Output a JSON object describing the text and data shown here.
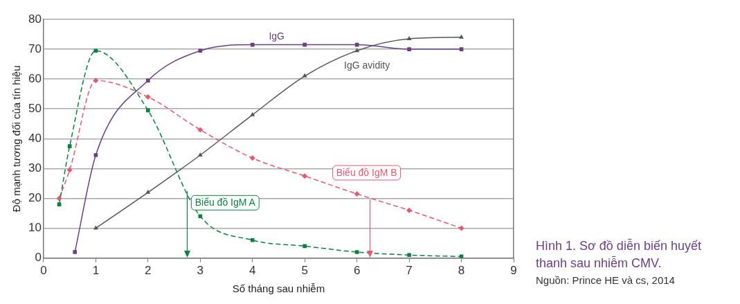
{
  "chart_data": {
    "type": "line",
    "title": "Hình 1. Sơ đồ diễn biến huyết thanh sau nhiễm CMV.",
    "xlabel": "Số tháng sau nhiễm",
    "ylabel": "Độ mạnh tương đối của tín hiệu",
    "annotations": [
      "Nguồn: Prince HE và cs, 2014"
    ],
    "series": [
      {
        "name": "Biểu đồ IgM A",
        "color": "#0a8040",
        "marker": "square",
        "line_style": "dashed",
        "x": [
          0.3,
          0.5,
          1,
          2,
          3,
          4,
          5,
          6,
          7,
          8
        ],
        "values": [
          18,
          37.5,
          69.5,
          49.5,
          14,
          6,
          4,
          2,
          1,
          0.5
        ]
      },
      {
        "name": "Biểu đồ IgM B",
        "color": "#e05a70",
        "marker": "diamond",
        "line_style": "dashed",
        "x": [
          0.3,
          0.5,
          1,
          2,
          3,
          4,
          5,
          6,
          7,
          8
        ],
        "values": [
          20,
          29.5,
          59.5,
          54,
          43,
          33.5,
          27.5,
          21.5,
          16,
          10
        ]
      },
      {
        "name": "IgG",
        "color": "#6a3f86",
        "marker": "square",
        "line_style": "solid",
        "x": [
          0.6,
          1,
          2,
          3,
          4,
          5,
          6,
          7,
          8
        ],
        "values": [
          2,
          34.5,
          59.5,
          69.5,
          71.5,
          71.5,
          71.5,
          70,
          70
        ]
      },
      {
        "name": "IgG avidity",
        "color": "#555555",
        "marker": "triangle",
        "line_style": "solid",
        "x": [
          1,
          2,
          3,
          4,
          5,
          6,
          7,
          8
        ],
        "values": [
          10,
          22,
          34.5,
          48,
          61,
          69.5,
          73.5,
          74
        ]
      }
    ],
    "ref_lines": [
      {
        "axis": "x",
        "value": 2.75,
        "color": "#0a8040"
      },
      {
        "axis": "x",
        "value": 6.25,
        "color": "#e05a70"
      }
    ],
    "xlim": [
      0,
      9
    ],
    "xticks": [
      0,
      1,
      2,
      3,
      4,
      5,
      6,
      7,
      8,
      9
    ],
    "ylim": [
      0,
      80
    ],
    "yticks": [
      0,
      10,
      20,
      30,
      40,
      50,
      60,
      70,
      80
    ],
    "grid": "y",
    "legend": false
  }
}
